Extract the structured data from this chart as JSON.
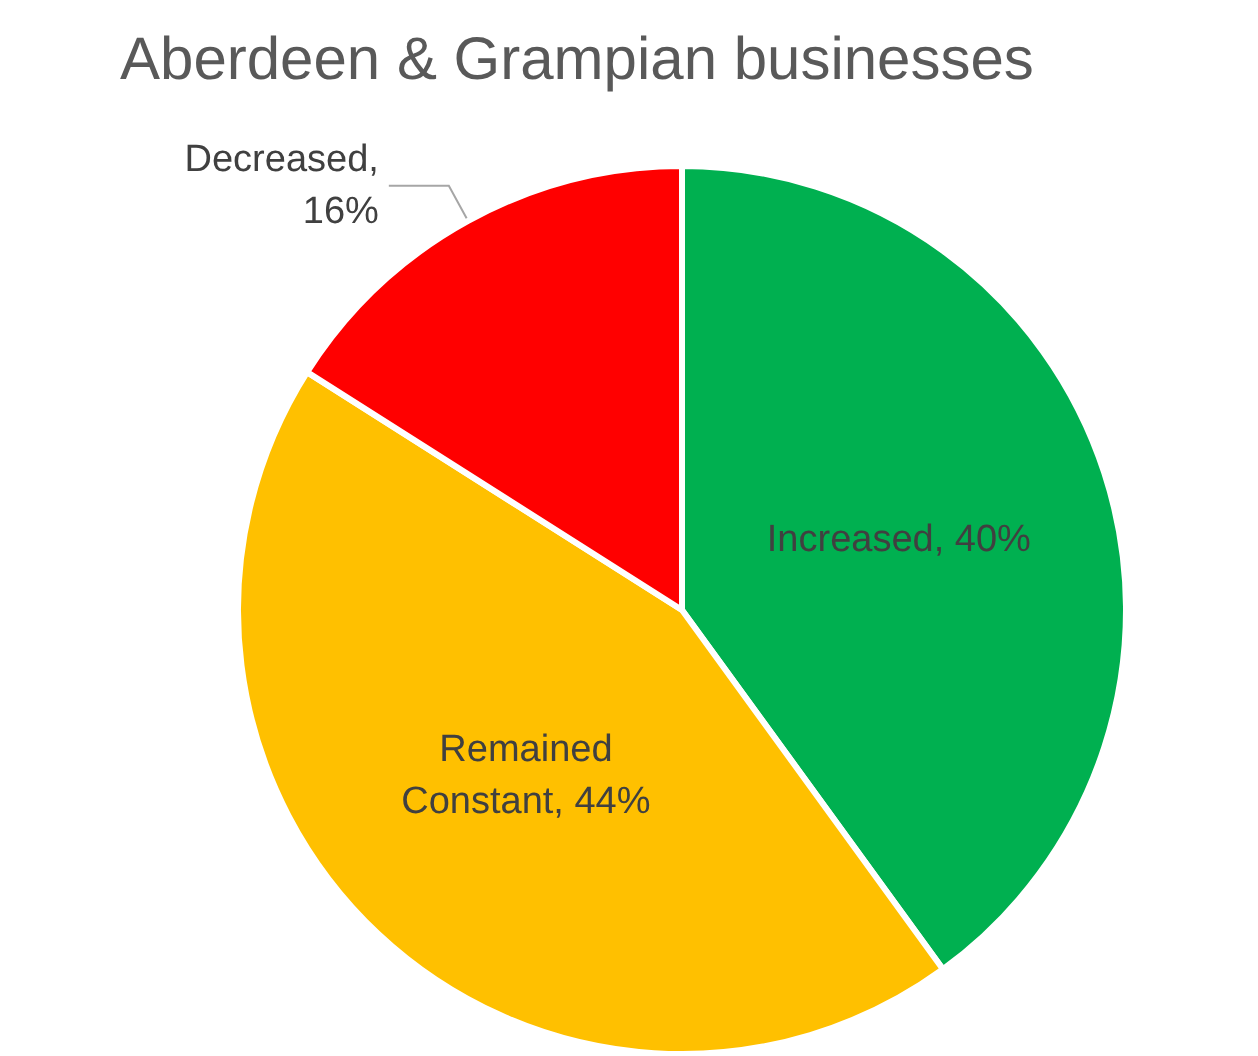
{
  "chart_data": {
    "type": "pie",
    "title": "Aberdeen & Grampian businesses",
    "categories": [
      "Increased",
      "Remained Constant",
      "Decreased"
    ],
    "values": [
      40,
      44,
      16
    ],
    "value_labels": [
      ", 40%",
      ", 44%",
      ", 16%"
    ],
    "colors": [
      "#00b050",
      "#ffc000",
      "#ff0000"
    ],
    "legend": false
  }
}
